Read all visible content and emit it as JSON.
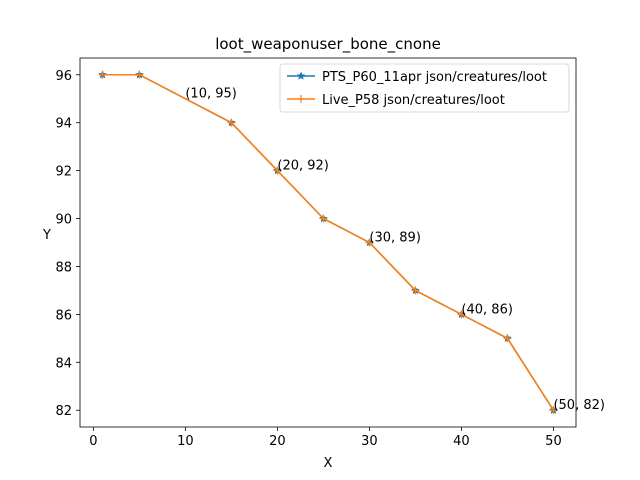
{
  "chart_data": {
    "type": "line",
    "title": "loot_weaponuser_bone_cnone",
    "xlabel": "X",
    "ylabel": "Y",
    "xlim": [
      -1.45,
      52.45
    ],
    "ylim": [
      81.3,
      96.7
    ],
    "xticks": [
      0,
      10,
      20,
      30,
      40,
      50
    ],
    "yticks": [
      82,
      84,
      86,
      88,
      90,
      92,
      94,
      96
    ],
    "grid": false,
    "legend_position": "top-right",
    "x": [
      1,
      5,
      15,
      20,
      25,
      30,
      35,
      40,
      45,
      50
    ],
    "series": [
      {
        "name": "PTS_P60_11apr json/creatures/loot",
        "color": "#1f77b4",
        "marker": "star",
        "values": [
          96,
          96,
          94,
          92,
          90,
          89,
          87,
          86,
          85,
          82
        ]
      },
      {
        "name": "Live_P58 json/creatures/loot",
        "color": "#ff7f0e",
        "marker": "plus",
        "values": [
          96,
          96,
          94,
          92,
          90,
          89,
          87,
          86,
          85,
          82
        ]
      }
    ],
    "annotations": [
      {
        "x": 10,
        "y": 95,
        "text": "(10, 95)"
      },
      {
        "x": 20,
        "y": 92,
        "text": "(20, 92)"
      },
      {
        "x": 30,
        "y": 89,
        "text": "(30, 89)"
      },
      {
        "x": 40,
        "y": 86,
        "text": "(40, 86)"
      },
      {
        "x": 50,
        "y": 82,
        "text": "(50, 82)"
      }
    ]
  }
}
